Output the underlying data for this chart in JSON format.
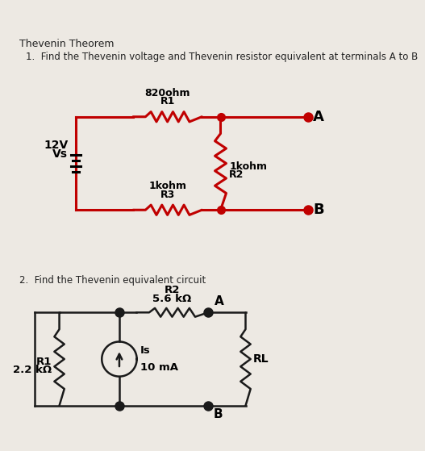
{
  "bg_color": "#ede9e3",
  "title": "Thevenin Theorem",
  "q1_text": "1.  Find the Thevenin voltage and Thevenin resistor equivalent at terminals A to B",
  "q2_text": "2.  Find the Thevenin equivalent circuit",
  "c1_wire_color": "#c00000",
  "c1_wire_lw": 2.2,
  "c2_wire_color": "#1a1a1a",
  "c2_wire_lw": 1.8,
  "label_820ohm": "820ohm",
  "label_R1_c1": "R1",
  "label_1kohm_R2": "1kohm",
  "label_R2_c1": "R2",
  "label_1kohm_R3": "1kohm",
  "label_R3_c1": "R3",
  "label_12V": "12V",
  "label_Vs": "Vs",
  "label_A_c1": "A",
  "label_B_c1": "B",
  "label_R2_c2": "R2",
  "label_56k": "5.6 kΩ",
  "label_R1_c2": "R1",
  "label_22k": "2.2 kΩ",
  "label_Is": "Is",
  "label_10mA": "10 mA",
  "label_RL": "RL",
  "label_A_c2": "A",
  "label_B_c2": "B"
}
